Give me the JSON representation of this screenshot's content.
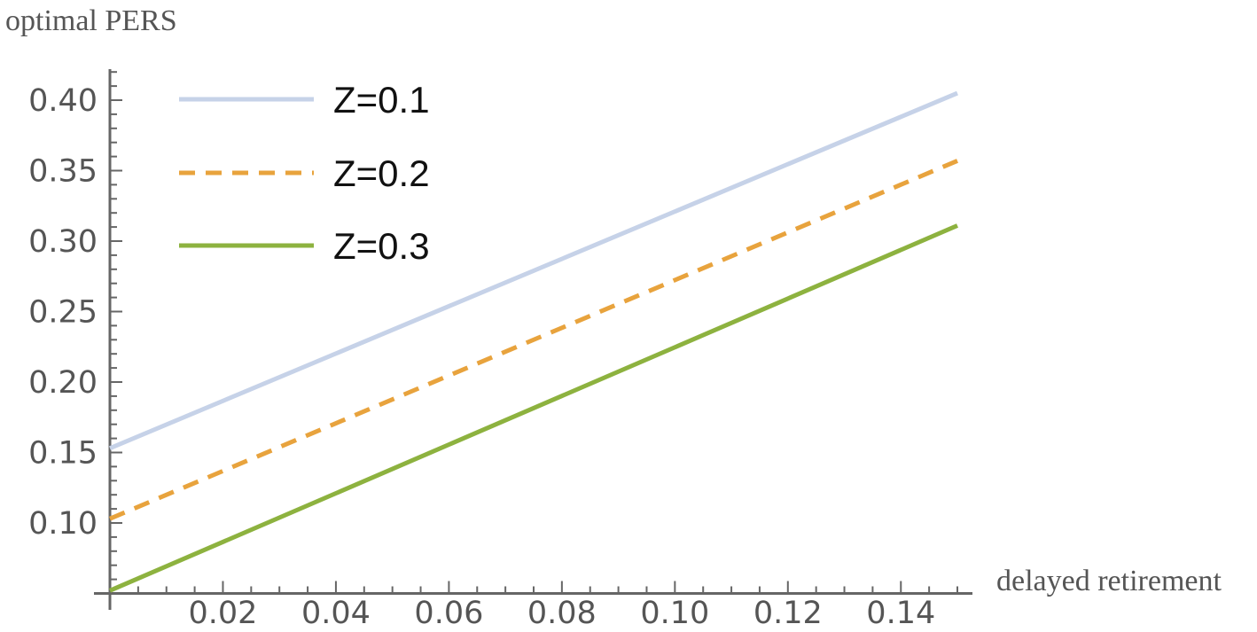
{
  "chart_data": {
    "type": "line",
    "title": "",
    "xlabel": "delayed retirement",
    "ylabel": "optimal PERS",
    "xlim": [
      0,
      0.15
    ],
    "ylim": [
      0.05,
      0.42
    ],
    "x_origin_y_value": 0.05,
    "x_ticks": [
      0.02,
      0.04,
      0.06,
      0.08,
      0.1,
      0.12,
      0.14
    ],
    "x_tick_labels": [
      "0.02",
      "0.04",
      "0.06",
      "0.08",
      "0.10",
      "0.12",
      "0.14"
    ],
    "y_ticks": [
      0.1,
      0.15,
      0.2,
      0.25,
      0.3,
      0.35,
      0.4
    ],
    "y_tick_labels": [
      "0.10",
      "0.15",
      "0.20",
      "0.25",
      "0.30",
      "0.35",
      "0.40"
    ],
    "grid": false,
    "legend_position": "top-left",
    "series": [
      {
        "name": "Z=0.1",
        "color": "#c6d2e8",
        "dash": "solid",
        "x": [
          0,
          0.15
        ],
        "values": [
          0.153,
          0.405
        ]
      },
      {
        "name": "Z=0.2",
        "color": "#e8a33d",
        "dash": "dashed",
        "x": [
          0,
          0.15
        ],
        "values": [
          0.103,
          0.357
        ]
      },
      {
        "name": "Z=0.3",
        "color": "#8db23f",
        "dash": "solid",
        "x": [
          0,
          0.15
        ],
        "values": [
          0.052,
          0.311
        ]
      }
    ]
  }
}
